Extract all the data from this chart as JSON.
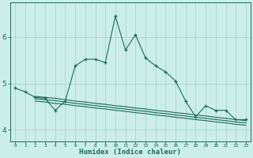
{
  "xlabel": "Humidex (Indice chaleur)",
  "bg_color": "#cceee8",
  "line_color": "#1a6b5a",
  "grid_color": "#aad4cc",
  "xlim": [
    -0.5,
    23.5
  ],
  "ylim": [
    3.75,
    6.75
  ],
  "xticks": [
    0,
    1,
    2,
    3,
    4,
    5,
    6,
    7,
    8,
    9,
    10,
    11,
    12,
    13,
    14,
    15,
    16,
    17,
    18,
    19,
    20,
    21,
    22,
    23
  ],
  "yticks": [
    4,
    5,
    6
  ],
  "line1_x": [
    0,
    1,
    2,
    3,
    4,
    5,
    6,
    7,
    8,
    9,
    10,
    11,
    12,
    13,
    14,
    15,
    16,
    17,
    18,
    19,
    20,
    21,
    22,
    23
  ],
  "line1_y": [
    4.9,
    4.82,
    4.7,
    4.68,
    4.42,
    4.62,
    5.38,
    5.52,
    5.52,
    5.45,
    6.45,
    5.72,
    6.05,
    5.55,
    5.38,
    5.25,
    5.05,
    4.62,
    4.28,
    4.52,
    4.42,
    4.42,
    4.22,
    4.22
  ],
  "line2_x": [
    2,
    3,
    4,
    5,
    6,
    7,
    8,
    9,
    10,
    11,
    12,
    13,
    14,
    15,
    16,
    17,
    18,
    19,
    20,
    21,
    22,
    23
  ],
  "line2_y": [
    4.72,
    4.7,
    4.68,
    4.65,
    4.62,
    4.6,
    4.57,
    4.55,
    4.52,
    4.5,
    4.47,
    4.45,
    4.42,
    4.4,
    4.37,
    4.35,
    4.32,
    4.3,
    4.27,
    4.25,
    4.22,
    4.2
  ],
  "line3_x": [
    2,
    3,
    4,
    5,
    6,
    7,
    8,
    9,
    10,
    11,
    12,
    13,
    14,
    15,
    16,
    17,
    18,
    19,
    20,
    21,
    22,
    23
  ],
  "line3_y": [
    4.67,
    4.65,
    4.63,
    4.6,
    4.57,
    4.55,
    4.52,
    4.5,
    4.47,
    4.45,
    4.42,
    4.4,
    4.37,
    4.35,
    4.32,
    4.3,
    4.27,
    4.25,
    4.22,
    4.2,
    4.17,
    4.15
  ],
  "line4_x": [
    2,
    3,
    4,
    5,
    6,
    7,
    8,
    9,
    10,
    11,
    12,
    13,
    14,
    15,
    16,
    17,
    18,
    19,
    20,
    21,
    22,
    23
  ],
  "line4_y": [
    4.62,
    4.6,
    4.57,
    4.55,
    4.52,
    4.5,
    4.47,
    4.45,
    4.42,
    4.4,
    4.37,
    4.35,
    4.32,
    4.3,
    4.27,
    4.25,
    4.22,
    4.2,
    4.17,
    4.15,
    4.12,
    4.1
  ]
}
